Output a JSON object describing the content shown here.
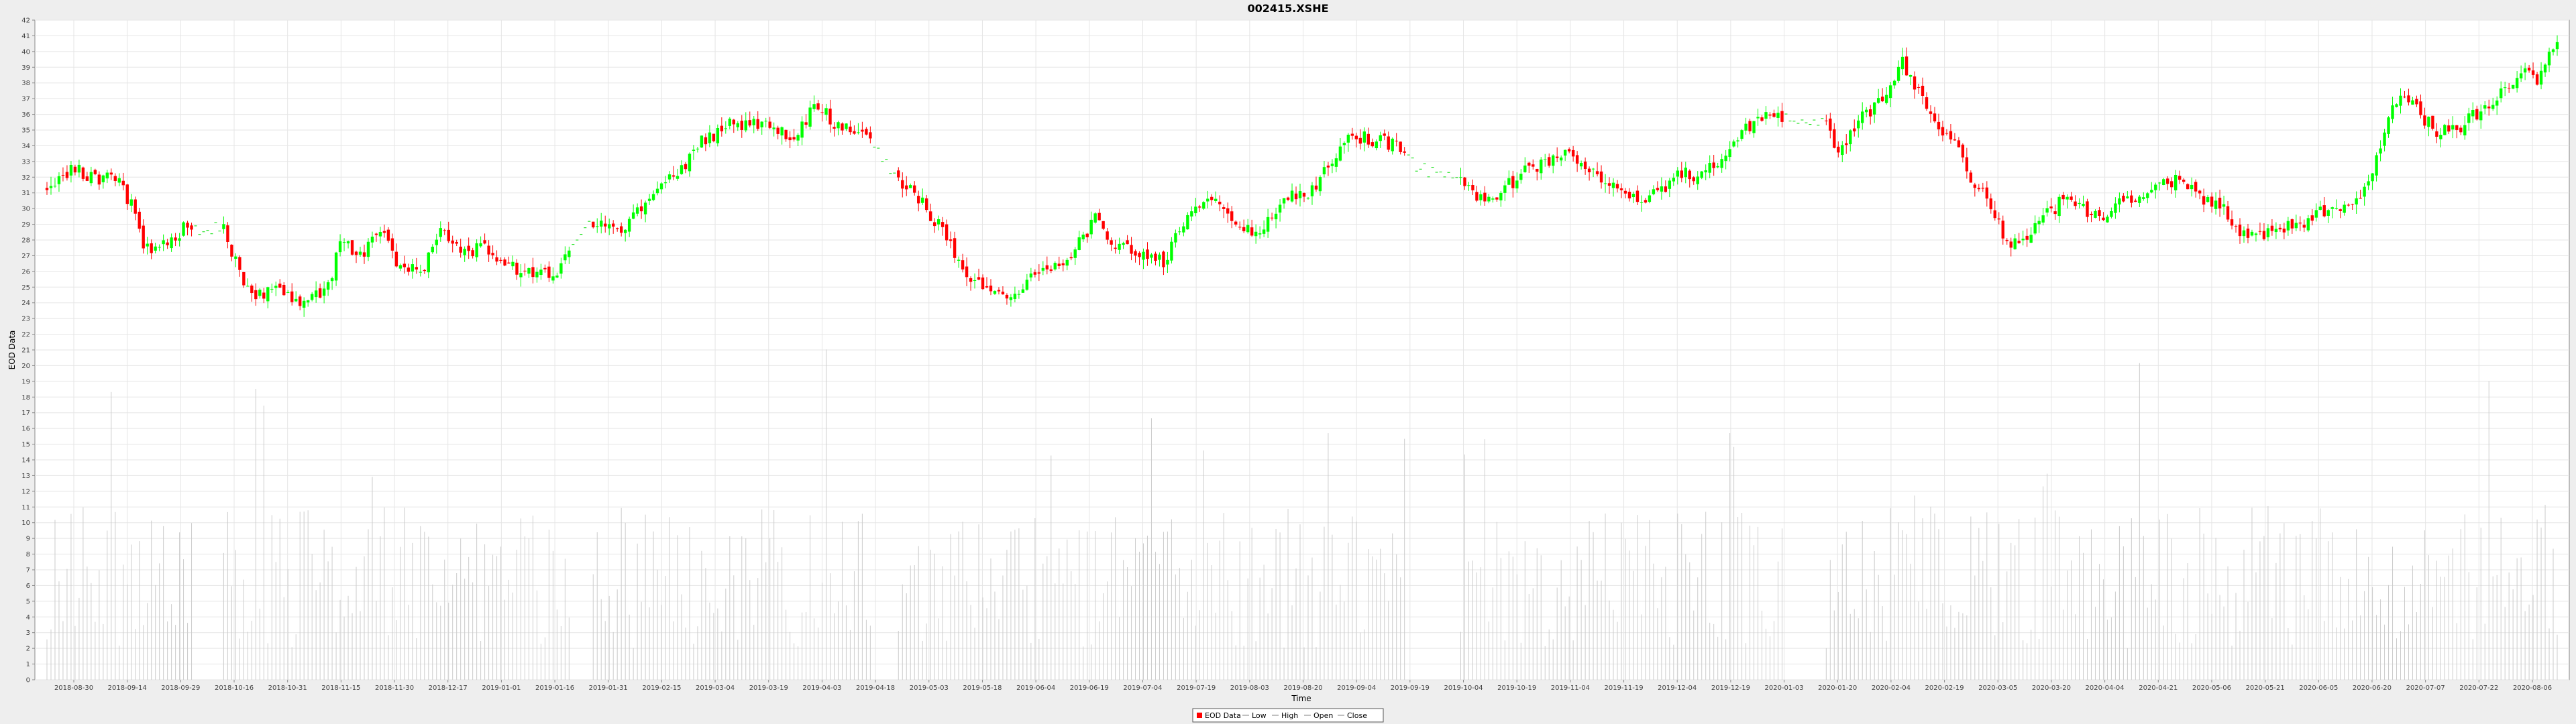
{
  "chart_data": {
    "type": "candlestick",
    "title": "002415.XSHE",
    "xlabel": "Time",
    "ylabel": "EOD Data",
    "ylim": [
      0,
      42
    ],
    "y_ticks": [
      0,
      1,
      2,
      3,
      4,
      5,
      6,
      7,
      8,
      9,
      10,
      11,
      12,
      13,
      14,
      15,
      16,
      17,
      18,
      19,
      20,
      21,
      22,
      23,
      24,
      25,
      26,
      27,
      28,
      29,
      30,
      31,
      32,
      33,
      34,
      35,
      36,
      37,
      38,
      39,
      40,
      41,
      42
    ],
    "x_tick_labels": [
      "2018-08-30",
      "2018-09-14",
      "2018-09-29",
      "2018-10-16",
      "2018-10-31",
      "2018-11-15",
      "2018-11-30",
      "2018-12-17",
      "2019-01-01",
      "2019-01-16",
      "2019-01-31",
      "2019-02-15",
      "2019-03-04",
      "2019-03-19",
      "2019-04-03",
      "2019-04-18",
      "2019-05-03",
      "2019-05-18",
      "2019-06-04",
      "2019-06-19",
      "2019-07-04",
      "2019-07-19",
      "2019-08-03",
      "2019-08-20",
      "2019-09-04",
      "2019-09-19",
      "2019-10-04",
      "2019-10-19",
      "2019-11-04",
      "2019-11-19",
      "2019-12-04",
      "2019-12-19",
      "2020-01-03",
      "2020-01-20",
      "2020-02-04",
      "2020-02-19",
      "2020-03-05",
      "2020-03-20",
      "2020-04-04",
      "2020-04-21",
      "2020-05-06",
      "2020-05-21",
      "2020-06-05",
      "2020-06-20",
      "2020-07-07",
      "2020-07-22",
      "2020-08-06"
    ],
    "grid": true,
    "legend_position": "bottom-center",
    "legend": [
      "EOD Data",
      "Low",
      "High",
      "Open",
      "Close"
    ],
    "colors": {
      "up": "#00ff00",
      "down": "#ff0000",
      "volume": "#cccccc",
      "grid": "#e5e5e5",
      "plot_bg": "#ffffff"
    },
    "price_anchors": [
      [
        0,
        31.3
      ],
      [
        6,
        32.6
      ],
      [
        12,
        32.0
      ],
      [
        17,
        31.9
      ],
      [
        21,
        30.3
      ],
      [
        24,
        27.4
      ],
      [
        29,
        27.8
      ],
      [
        34,
        28.7
      ],
      [
        44,
        28.7
      ],
      [
        48,
        25.9
      ],
      [
        52,
        24.5
      ],
      [
        58,
        24.7
      ],
      [
        64,
        24.0
      ],
      [
        70,
        24.9
      ],
      [
        73,
        27.9
      ],
      [
        78,
        27.0
      ],
      [
        84,
        28.6
      ],
      [
        87,
        26.5
      ],
      [
        94,
        26.1
      ],
      [
        98,
        29.0
      ],
      [
        103,
        27.0
      ],
      [
        108,
        27.7
      ],
      [
        112,
        26.8
      ],
      [
        118,
        26.0
      ],
      [
        126,
        25.6
      ],
      [
        131,
        27.9
      ],
      [
        136,
        29.1
      ],
      [
        140,
        28.9
      ],
      [
        144,
        28.5
      ],
      [
        149,
        30.6
      ],
      [
        153,
        31.9
      ],
      [
        158,
        32.4
      ],
      [
        163,
        34.2
      ],
      [
        166,
        34.5
      ],
      [
        171,
        35.5
      ],
      [
        175,
        35.2
      ],
      [
        180,
        35.5
      ],
      [
        186,
        34.1
      ],
      [
        191,
        36.8
      ],
      [
        196,
        35.5
      ],
      [
        201,
        35.2
      ],
      [
        205,
        34.6
      ],
      [
        211,
        32.1
      ],
      [
        218,
        30.3
      ],
      [
        224,
        28.2
      ],
      [
        230,
        25.3
      ],
      [
        234,
        25.0
      ],
      [
        240,
        24.3
      ],
      [
        246,
        25.7
      ],
      [
        252,
        26.2
      ],
      [
        256,
        27.4
      ],
      [
        261,
        29.3
      ],
      [
        266,
        27.8
      ],
      [
        271,
        27.3
      ],
      [
        278,
        26.7
      ],
      [
        283,
        28.9
      ],
      [
        288,
        30.7
      ],
      [
        293,
        30.0
      ],
      [
        298,
        28.5
      ],
      [
        303,
        28.9
      ],
      [
        308,
        30.6
      ],
      [
        314,
        31.0
      ],
      [
        320,
        32.9
      ],
      [
        325,
        34.6
      ],
      [
        330,
        34.4
      ],
      [
        337,
        33.9
      ],
      [
        341,
        32.6
      ],
      [
        352,
        32.1
      ],
      [
        357,
        30.6
      ],
      [
        362,
        31.1
      ],
      [
        368,
        32.3
      ],
      [
        372,
        32.7
      ],
      [
        378,
        33.5
      ],
      [
        383,
        32.7
      ],
      [
        387,
        32.0
      ],
      [
        392,
        31.4
      ],
      [
        397,
        30.6
      ],
      [
        402,
        31.0
      ],
      [
        407,
        32.3
      ],
      [
        412,
        32.1
      ],
      [
        418,
        33.5
      ],
      [
        423,
        35.0
      ],
      [
        428,
        36.2
      ],
      [
        432,
        35.6
      ],
      [
        443,
        35.6
      ],
      [
        446,
        33.3
      ],
      [
        451,
        35.5
      ],
      [
        457,
        37.1
      ],
      [
        462,
        39.4
      ],
      [
        466,
        37.3
      ],
      [
        470,
        35.4
      ],
      [
        475,
        34.2
      ],
      [
        480,
        31.5
      ],
      [
        484,
        30.3
      ],
      [
        488,
        27.8
      ],
      [
        493,
        28.1
      ],
      [
        498,
        29.7
      ],
      [
        502,
        30.5
      ],
      [
        507,
        29.9
      ],
      [
        512,
        29.5
      ],
      [
        517,
        30.5
      ],
      [
        522,
        31.0
      ],
      [
        527,
        31.9
      ],
      [
        532,
        31.6
      ],
      [
        537,
        30.4
      ],
      [
        542,
        30.1
      ],
      [
        546,
        28.4
      ],
      [
        551,
        28.4
      ],
      [
        556,
        28.9
      ],
      [
        561,
        28.7
      ],
      [
        566,
        29.9
      ],
      [
        571,
        29.9
      ],
      [
        576,
        30.4
      ],
      [
        581,
        34.2
      ],
      [
        586,
        37.6
      ],
      [
        591,
        35.9
      ],
      [
        596,
        34.8
      ],
      [
        601,
        35.3
      ],
      [
        606,
        36.3
      ],
      [
        611,
        37.4
      ],
      [
        616,
        38.8
      ],
      [
        620,
        38.2
      ],
      [
        624,
        40.3
      ]
    ],
    "n_days": 626,
    "volume_range_max": 42
  },
  "legend_labels": {
    "eod": "EOD Data",
    "low": "Low",
    "high": "High",
    "open": "Open",
    "close": "Close"
  }
}
